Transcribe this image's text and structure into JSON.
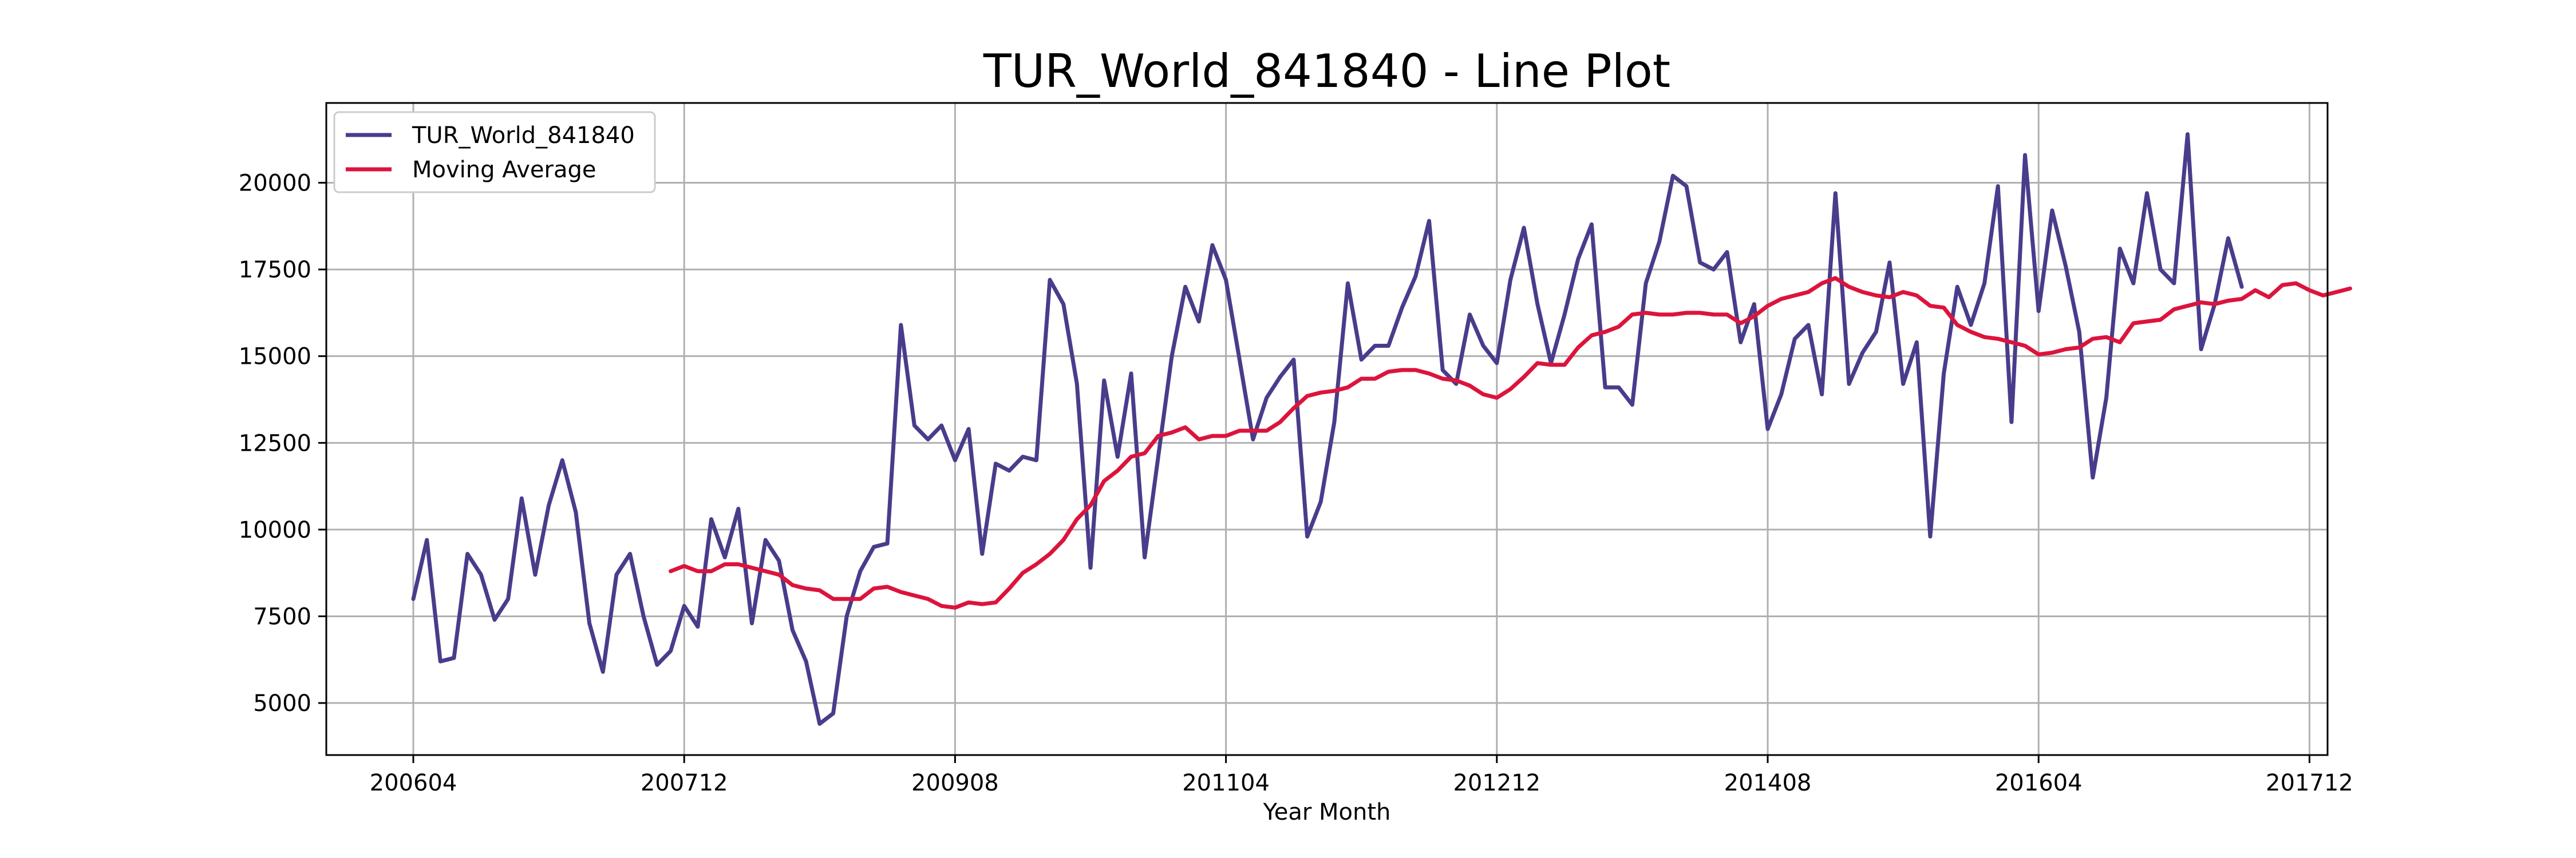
{
  "chart_data": {
    "type": "line",
    "title": "TUR_World_841840 - Line Plot",
    "xlabel": "Year Month",
    "ylabel": "",
    "x_ticks": [
      "200604",
      "200712",
      "200908",
      "201104",
      "201212",
      "201408",
      "201604",
      "201712"
    ],
    "y_ticks": [
      "5000",
      "7500",
      "10000",
      "12500",
      "15000",
      "17500",
      "20000"
    ],
    "ylim": [
      3500,
      22300
    ],
    "grid": true,
    "legend_position": "top-left",
    "series": [
      {
        "name": "TUR_World_841840",
        "color": "#483d8b",
        "start": "200604",
        "values": [
          8000,
          9700,
          6200,
          6300,
          9300,
          8700,
          7400,
          8000,
          10900,
          8700,
          10700,
          12000,
          10500,
          7300,
          5900,
          8700,
          9300,
          7500,
          6100,
          6500,
          7800,
          7200,
          10300,
          9200,
          10600,
          7300,
          9700,
          9100,
          7100,
          6200,
          4400,
          4700,
          7500,
          8800,
          9500,
          9600,
          15900,
          13000,
          12600,
          13000,
          12000,
          12900,
          9300,
          11900,
          11700,
          12100,
          12000,
          17200,
          16500,
          14200,
          8900,
          14300,
          12100,
          14500,
          9200,
          12100,
          15000,
          17000,
          16000,
          18200,
          17200,
          14900,
          12600,
          13800,
          14400,
          14900,
          9800,
          10800,
          13100,
          17100,
          14900,
          15300,
          15300,
          16400,
          17300,
          18900,
          14600,
          14200,
          16200,
          15300,
          14800,
          17200,
          18700,
          16500,
          14800,
          16200,
          17800,
          18800,
          14100,
          14100,
          13600,
          17100,
          18300,
          20200,
          19900,
          17700,
          17500,
          18000,
          15400,
          16500,
          12900,
          13900,
          15500,
          15900,
          13900,
          19700,
          14200,
          15100,
          15700,
          17700,
          14200,
          15400,
          9800,
          14500,
          17000,
          15900,
          17100,
          19900,
          13100,
          20800,
          16300,
          19200,
          17600,
          15700,
          11500,
          13800,
          18100,
          17100,
          19700,
          17500,
          17100,
          21400,
          15200,
          16500,
          18400,
          17000
        ]
      },
      {
        "name": "Moving Average",
        "color": "#dc143c",
        "start": "200711",
        "values": [
          8800,
          8950,
          8800,
          8800,
          9000,
          9000,
          8900,
          8800,
          8700,
          8400,
          8300,
          8250,
          8000,
          8000,
          8000,
          8300,
          8350,
          8200,
          8100,
          8000,
          7800,
          7750,
          7900,
          7850,
          7900,
          8300,
          8750,
          9000,
          9300,
          9700,
          10300,
          10700,
          11400,
          11700,
          12100,
          12200,
          12700,
          12800,
          12950,
          12600,
          12700,
          12700,
          12850,
          12850,
          12850,
          13100,
          13500,
          13850,
          13950,
          14000,
          14100,
          14350,
          14350,
          14550,
          14600,
          14600,
          14500,
          14350,
          14300,
          14150,
          13900,
          13800,
          14050,
          14400,
          14800,
          14750,
          14750,
          15250,
          15600,
          15700,
          15850,
          16200,
          16250,
          16200,
          16200,
          16250,
          16250,
          16200,
          16200,
          15950,
          16150,
          16450,
          16650,
          16750,
          16850,
          17100,
          17250,
          17000,
          16850,
          16750,
          16700,
          16850,
          16750,
          16450,
          16400,
          15900,
          15700,
          15550,
          15500,
          15400,
          15300,
          15050,
          15100,
          15200,
          15250,
          15500,
          15550,
          15400,
          15950,
          16000,
          16050,
          16350,
          16450,
          16550,
          16500,
          16600,
          16650,
          16900,
          16700,
          17050,
          17100,
          16900,
          16750,
          16850,
          16950
        ]
      }
    ]
  }
}
